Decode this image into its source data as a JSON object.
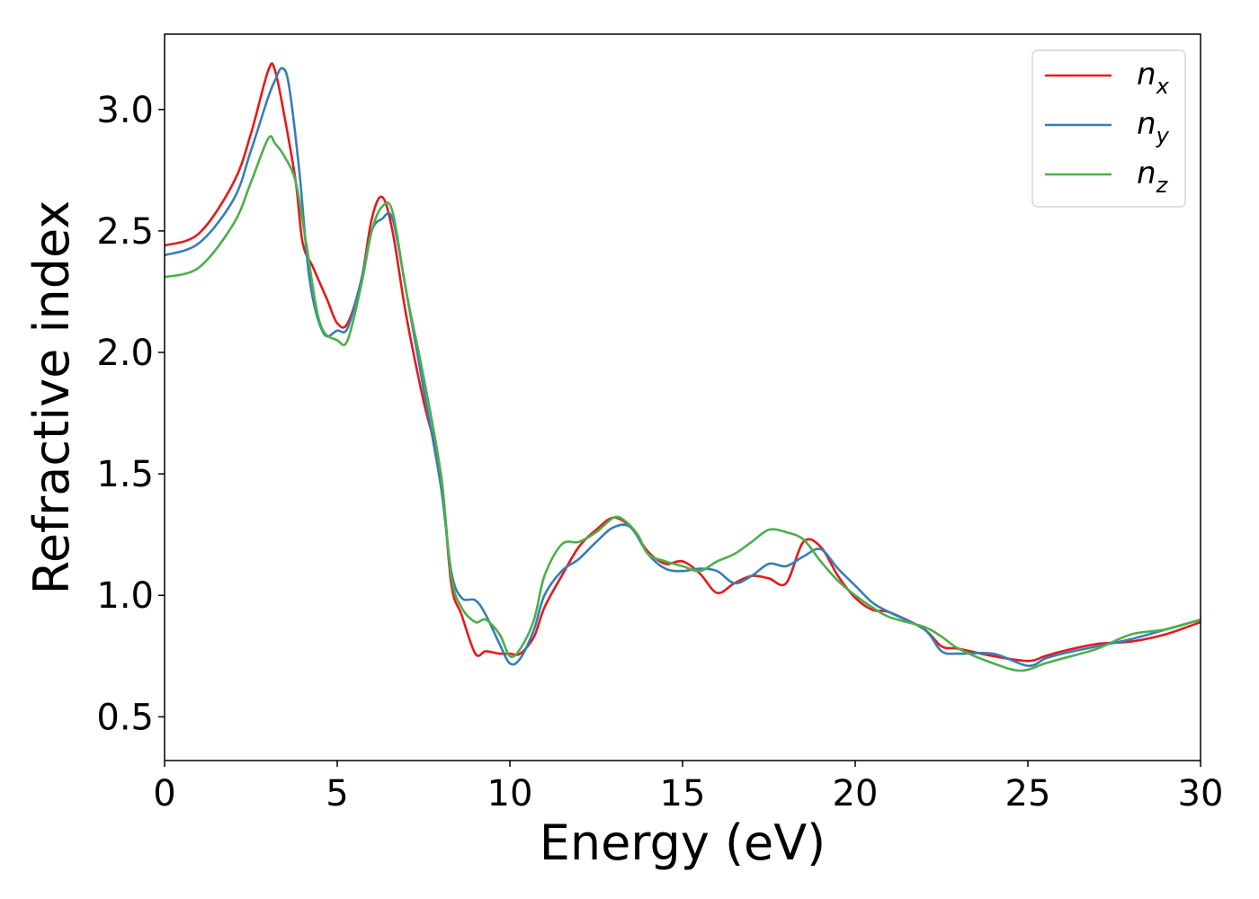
{
  "chart_data": {
    "type": "line",
    "xlabel": "Energy (eV)",
    "ylabel": "Refractive index",
    "xlim": [
      0,
      30
    ],
    "ylim": [
      0.32,
      3.31
    ],
    "xticks": [
      "0",
      "5",
      "10",
      "15",
      "20",
      "25",
      "30"
    ],
    "yticks": [
      "0.5",
      "1.0",
      "1.5",
      "2.0",
      "2.5",
      "3.0"
    ],
    "grid": false,
    "legend_position": "top-right",
    "series": [
      {
        "name": "n_x",
        "name_base": "n",
        "name_sub": "x",
        "color": "#e41a1c",
        "x": [
          0,
          1,
          2,
          2.5,
          3.0,
          3.2,
          3.5,
          3.8,
          4.0,
          4.3,
          4.7,
          5.0,
          5.3,
          5.7,
          6.0,
          6.3,
          6.6,
          7.0,
          7.5,
          8.0,
          8.3,
          8.6,
          9.0,
          9.3,
          9.7,
          10.0,
          10.3,
          10.7,
          11.0,
          11.5,
          12.0,
          12.5,
          13.0,
          13.5,
          14.0,
          14.5,
          15.0,
          15.5,
          16.0,
          16.5,
          17.0,
          17.5,
          18.0,
          18.5,
          19.0,
          19.5,
          20.0,
          20.5,
          21.0,
          22.0,
          22.5,
          23.0,
          24.0,
          25.0,
          25.5,
          26.0,
          27.0,
          28.0,
          29.0,
          30.0
        ],
        "y": [
          2.44,
          2.49,
          2.7,
          2.9,
          3.16,
          3.16,
          2.95,
          2.7,
          2.45,
          2.35,
          2.22,
          2.12,
          2.12,
          2.3,
          2.55,
          2.64,
          2.5,
          2.15,
          1.8,
          1.5,
          1.05,
          0.92,
          0.76,
          0.77,
          0.76,
          0.76,
          0.76,
          0.83,
          0.95,
          1.08,
          1.2,
          1.27,
          1.32,
          1.28,
          1.18,
          1.13,
          1.14,
          1.09,
          1.01,
          1.05,
          1.08,
          1.07,
          1.05,
          1.22,
          1.2,
          1.08,
          0.99,
          0.94,
          0.93,
          0.86,
          0.79,
          0.78,
          0.75,
          0.73,
          0.75,
          0.77,
          0.8,
          0.81,
          0.84,
          0.89
        ]
      },
      {
        "name": "n_y",
        "name_base": "n",
        "name_sub": "y",
        "color": "#377eb8",
        "x": [
          0,
          1,
          2,
          2.5,
          3.0,
          3.2,
          3.4,
          3.6,
          3.9,
          4.2,
          4.6,
          5.0,
          5.3,
          5.7,
          6.0,
          6.3,
          6.6,
          7.0,
          7.5,
          8.0,
          8.3,
          8.6,
          9.0,
          9.3,
          9.7,
          10.0,
          10.3,
          10.7,
          11.0,
          11.5,
          12.0,
          12.5,
          13.0,
          13.5,
          14.0,
          14.5,
          15.0,
          15.5,
          16.0,
          16.5,
          17.0,
          17.5,
          18.0,
          18.5,
          19.0,
          19.5,
          20.0,
          20.5,
          21.0,
          22.0,
          22.5,
          23.0,
          24.0,
          25.0,
          25.5,
          26.0,
          27.0,
          28.0,
          29.0,
          30.0
        ],
        "y": [
          2.4,
          2.45,
          2.63,
          2.83,
          3.05,
          3.12,
          3.17,
          3.1,
          2.75,
          2.3,
          2.08,
          2.09,
          2.1,
          2.3,
          2.5,
          2.55,
          2.55,
          2.25,
          1.85,
          1.45,
          1.1,
          0.99,
          0.98,
          0.92,
          0.8,
          0.72,
          0.74,
          0.86,
          1.0,
          1.1,
          1.15,
          1.22,
          1.28,
          1.28,
          1.17,
          1.11,
          1.1,
          1.11,
          1.1,
          1.05,
          1.08,
          1.13,
          1.12,
          1.16,
          1.19,
          1.11,
          1.04,
          0.97,
          0.93,
          0.86,
          0.77,
          0.76,
          0.76,
          0.71,
          0.74,
          0.76,
          0.79,
          0.82,
          0.86,
          0.9
        ]
      },
      {
        "name": "n_z",
        "name_base": "n",
        "name_sub": "z",
        "color": "#4daf4a",
        "x": [
          0,
          1,
          2,
          2.5,
          3.0,
          3.2,
          3.5,
          3.8,
          4.1,
          4.5,
          5.0,
          5.3,
          5.7,
          6.0,
          6.3,
          6.6,
          7.0,
          7.5,
          8.0,
          8.3,
          8.6,
          9.0,
          9.3,
          9.7,
          10.0,
          10.3,
          10.7,
          11.0,
          11.5,
          12.0,
          12.5,
          13.0,
          13.3,
          13.7,
          14.0,
          14.5,
          15.0,
          15.5,
          16.0,
          16.5,
          17.0,
          17.5,
          18.0,
          18.5,
          19.0,
          19.5,
          20.0,
          20.5,
          21.0,
          22.0,
          22.5,
          23.0,
          24.0,
          24.8,
          25.5,
          26.0,
          27.0,
          28.0,
          29.0,
          30.0
        ],
        "y": [
          2.31,
          2.35,
          2.53,
          2.7,
          2.88,
          2.86,
          2.8,
          2.7,
          2.45,
          2.12,
          2.05,
          2.05,
          2.28,
          2.5,
          2.6,
          2.58,
          2.25,
          1.9,
          1.5,
          1.08,
          0.95,
          0.89,
          0.9,
          0.84,
          0.75,
          0.78,
          0.9,
          1.08,
          1.21,
          1.22,
          1.26,
          1.32,
          1.31,
          1.25,
          1.17,
          1.14,
          1.12,
          1.1,
          1.14,
          1.17,
          1.22,
          1.27,
          1.26,
          1.23,
          1.14,
          1.06,
          1.0,
          0.95,
          0.91,
          0.87,
          0.83,
          0.78,
          0.72,
          0.69,
          0.72,
          0.74,
          0.78,
          0.84,
          0.86,
          0.9
        ]
      }
    ]
  }
}
